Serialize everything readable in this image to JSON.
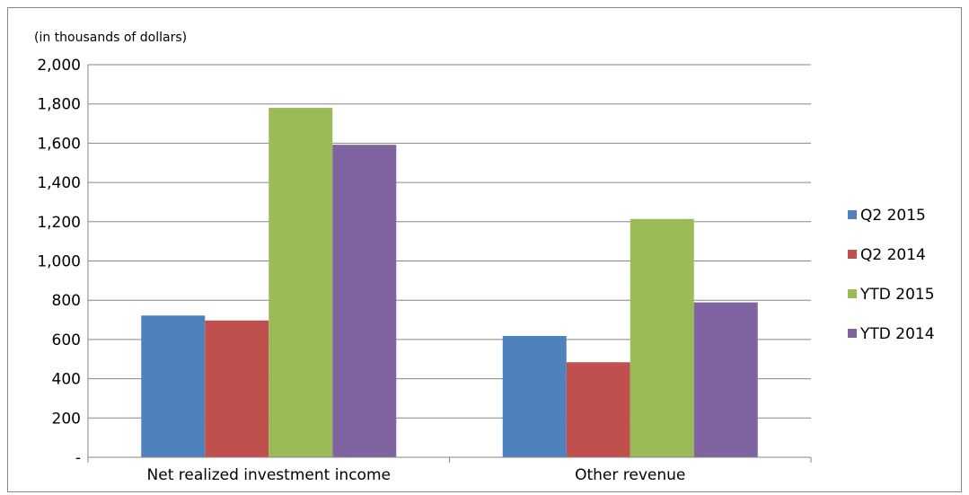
{
  "chart_data": {
    "type": "bar",
    "unit_note": "(in thousands of dollars)",
    "title": "",
    "xlabel": "",
    "ylabel": "",
    "categories": [
      "Net realized investment income",
      "Other revenue"
    ],
    "series": [
      {
        "name": "Q2 2015",
        "color": "#4F81BD",
        "values": [
          722,
          618
        ]
      },
      {
        "name": "Q2 2014",
        "color": "#C0504D",
        "values": [
          697,
          484
        ]
      },
      {
        "name": "YTD 2015",
        "color": "#9BBB59",
        "values": [
          1780,
          1214
        ]
      },
      {
        "name": "YTD 2014",
        "color": "#8064A2",
        "values": [
          1592,
          789
        ]
      }
    ],
    "ylim": [
      0,
      2000
    ],
    "yticks": [
      0,
      200,
      400,
      600,
      800,
      1000,
      1200,
      1400,
      1600,
      1800,
      2000
    ],
    "ytick_labels": [
      "-",
      "200",
      "400",
      "600",
      "800",
      "1,000",
      "1,200",
      "1,400",
      "1,600",
      "1,800",
      "2,000"
    ],
    "grid": true,
    "legend_position": "right"
  }
}
